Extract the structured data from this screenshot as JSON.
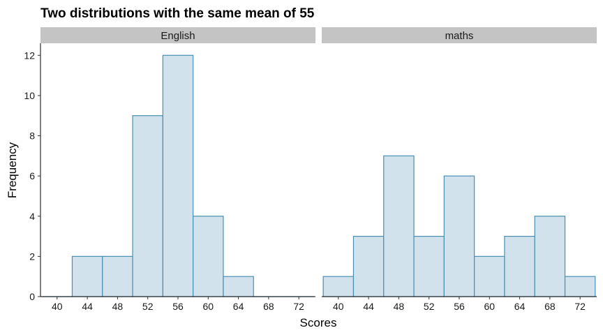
{
  "chart_data": {
    "type": "bar",
    "title": "Two distributions with the same mean of 55",
    "xlabel": "Scores",
    "ylabel": "Frequency",
    "ylim": [
      0,
      12.6
    ],
    "y_ticks": [
      0,
      2,
      4,
      6,
      8,
      10,
      12
    ],
    "x_ticks": [
      40,
      44,
      48,
      52,
      56,
      60,
      64,
      68,
      72
    ],
    "xlim": [
      37.8,
      74.2
    ],
    "bin_width": 4,
    "colors": {
      "bar_fill": "#d1e2ec",
      "bar_stroke": "#4a8eb3",
      "strip": "#c4c4c4"
    },
    "facets": [
      {
        "label": "English",
        "bins": [
          {
            "x": 40,
            "count": 0
          },
          {
            "x": 44,
            "count": 2
          },
          {
            "x": 48,
            "count": 2
          },
          {
            "x": 52,
            "count": 9
          },
          {
            "x": 56,
            "count": 12
          },
          {
            "x": 60,
            "count": 4
          },
          {
            "x": 64,
            "count": 1
          },
          {
            "x": 68,
            "count": 0
          },
          {
            "x": 72,
            "count": 0
          }
        ]
      },
      {
        "label": "maths",
        "bins": [
          {
            "x": 40,
            "count": 1
          },
          {
            "x": 44,
            "count": 3
          },
          {
            "x": 48,
            "count": 7
          },
          {
            "x": 52,
            "count": 3
          },
          {
            "x": 56,
            "count": 6
          },
          {
            "x": 60,
            "count": 2
          },
          {
            "x": 64,
            "count": 3
          },
          {
            "x": 68,
            "count": 4
          },
          {
            "x": 72,
            "count": 1
          }
        ]
      }
    ]
  }
}
